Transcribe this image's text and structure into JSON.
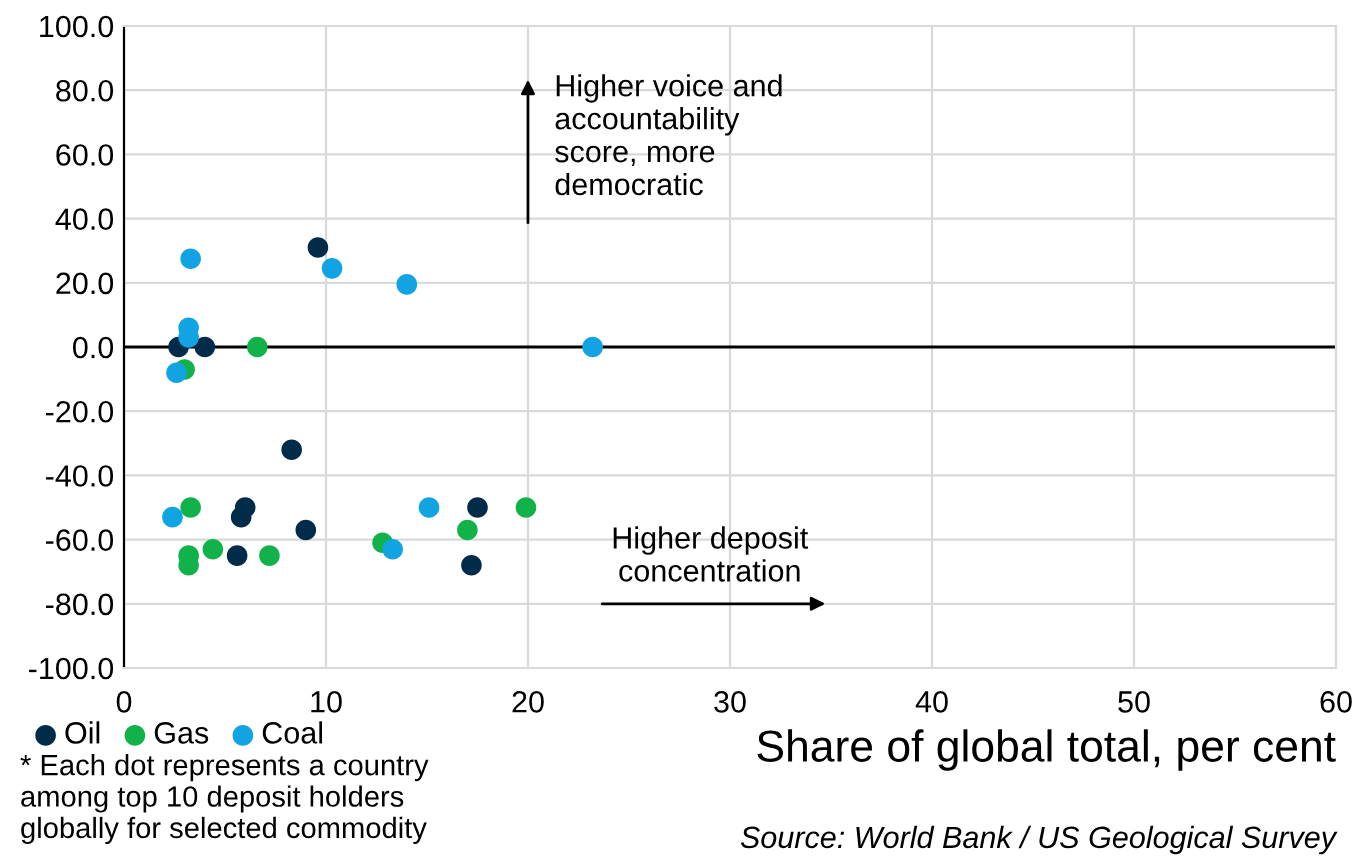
{
  "chart_data": {
    "type": "scatter",
    "xlabel": "Share of global total, per cent",
    "series": [
      {
        "name": "Oil",
        "color": "#002b49",
        "x": [
          2.7,
          4.0,
          9.6,
          8.3,
          6.0,
          5.8,
          5.6,
          9.0,
          17.5,
          17.2
        ],
        "values": [
          0,
          0,
          31,
          -32,
          -50,
          -53,
          -65,
          -57,
          -50,
          -68
        ]
      },
      {
        "name": "Gas",
        "color": "#12b24a",
        "x": [
          3.0,
          6.6,
          3.3,
          3.2,
          3.2,
          4.4,
          7.2,
          12.8,
          17.0,
          19.9
        ],
        "values": [
          -7,
          0,
          -50,
          -65,
          -68,
          -63,
          -65,
          -61,
          -57,
          -50
        ]
      },
      {
        "name": "Coal",
        "color": "#12a3e3",
        "x": [
          3.3,
          10.3,
          14.0,
          3.2,
          3.2,
          23.2,
          2.6,
          2.4,
          15.1,
          13.3
        ],
        "values": [
          27.5,
          24.5,
          19.5,
          6,
          3,
          0,
          -8,
          -53,
          -50,
          -63
        ]
      }
    ],
    "xlim": [
      0,
      60
    ],
    "xticks": [
      0,
      10,
      20,
      30,
      40,
      50,
      60
    ],
    "ylim": [
      -100,
      100
    ],
    "yticks": [
      {
        "value": -100,
        "label": "-100.0"
      },
      {
        "value": -80,
        "label": "-80.0"
      },
      {
        "value": -60,
        "label": "-60.0"
      },
      {
        "value": -40,
        "label": "-40.0"
      },
      {
        "value": -20,
        "label": "-20.0"
      },
      {
        "value": 0,
        "label": "0.0"
      },
      {
        "value": 20,
        "label": "20.0"
      },
      {
        "value": 40,
        "label": "40.0"
      },
      {
        "value": 60,
        "label": "60.0"
      },
      {
        "value": 80,
        "label": "80.0"
      },
      {
        "value": 100,
        "label": "100.0"
      }
    ],
    "ref_lines": [
      {
        "axis": "y",
        "value": 0,
        "color": "#000000"
      }
    ],
    "grid": true,
    "legend": "bottom left",
    "marker": "circle",
    "annotations": [
      "Higher voice and\naccountability\nscore, more\ndemocratic",
      "Higher deposit\nconcentration",
      "* Each dot represents a country\namong top 10 deposit holders\nglobally for selected commodity",
      "Source: World Bank / US Geological Survey"
    ]
  }
}
